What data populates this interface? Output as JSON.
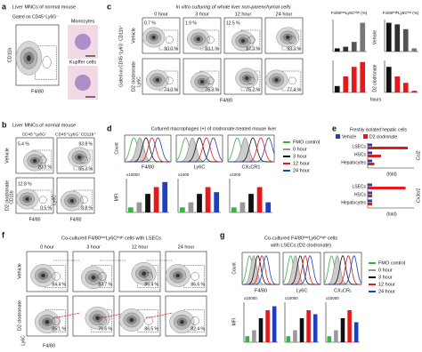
{
  "panel_a": {
    "label": "a",
    "title": "Liver MNCs of normal mouse",
    "gate": "Gated on CD45⁺Ly6G⁻",
    "images": [
      "Monocytes",
      "Kupffer cells"
    ],
    "y_axis": "CD11b",
    "x_axis": "F4/80"
  },
  "panel_c": {
    "label": "c",
    "title": "In vitro culturing of whole liver non-parenchymal cells",
    "times": [
      "0 hour",
      "3 hour",
      "12 hour",
      "24 hour"
    ],
    "rows": [
      "Vehicle",
      "D2 clodronate"
    ],
    "gate": "Gated on CD45⁺Ly6G⁻CD11b⁺",
    "y_axis": "Ly6C",
    "x_axis": "F4/80",
    "vehicle_upper": [
      "0.7 %",
      "1.9 %",
      "12.5 %"
    ],
    "vehicle_lower": [
      "90.0 %",
      "83.1 %",
      "87.3 %",
      "93.3 %"
    ],
    "d2_lower": [
      "74.0 %",
      "75.3 %",
      "76.2 %",
      "77.4 %"
    ],
    "bar_titles": [
      "F4/80ˡᵒʷLy6Cʰⁱᵍʰ (%)",
      "F4/80ʰⁱᵍʰLy6Cˡᵒʷ (%)"
    ],
    "bar_rows": [
      "Vehicle",
      "D2 clodronate"
    ],
    "bar_x_label": "hours"
  },
  "panel_b": {
    "label": "b",
    "title": "Liver MNCs of normal mouse",
    "headers": [
      "CD45⁺Ly6G⁻",
      "CD45⁺Ly6G⁻CD11b⁺"
    ],
    "rows": [
      "Vehicle",
      "D2 clodronate"
    ],
    "percents": [
      "5.4 %",
      "20.3 %",
      "93.8 %",
      "65.3 %",
      "12.8 %",
      "0.5 %",
      "8.8 %"
    ],
    "axes": [
      "CD11b",
      "F4/80",
      "Ly6C",
      "F4/80"
    ]
  },
  "panel_d": {
    "label": "d",
    "title": "Cultured macrophages (+) of clodronate-treated mouse liver",
    "legend": [
      "FMO control",
      "0 hour",
      "3 hour",
      "12 hour",
      "24 hour"
    ],
    "y_axis": "Count",
    "markers": [
      "F4/80",
      "Ly6C",
      "CX₃CR1"
    ],
    "bar_y_axis": "MFI",
    "multipliers": [
      "x10000",
      "x1000",
      "x1000"
    ]
  },
  "panel_e": {
    "label": "e",
    "title": "Freshly isolated hepatic cells",
    "legend": [
      "Vehicle",
      "D2 clodronate"
    ],
    "cells_1": [
      "LSECs",
      "HSCs",
      "Hepatocytes"
    ],
    "cells_2": [
      "LSECs",
      "HSCs",
      "Hepatocytes"
    ],
    "genes": [
      "Ccl2",
      "Cx3cl1"
    ],
    "units": [
      "(fold)",
      "(fold)"
    ]
  },
  "panel_f": {
    "label": "f",
    "title": "Co-cultured F4/80ˡᵒʷLy6Cʰⁱᵍʰ cells with LSECs",
    "times": [
      "0 hour",
      "3 hour",
      "12 hour",
      "24 hour"
    ],
    "rows": [
      "Vehicle",
      "D2 clodronate"
    ],
    "vehicle": [
      "84.4 %",
      "83.7 %",
      "85.4 %",
      "86.6 %"
    ],
    "d2": [
      "85.1 %",
      "76.6 %",
      "86.5 %",
      "82.4 %"
    ],
    "y_axis": "Ly6C",
    "x_axis": "F4/80"
  },
  "panel_g": {
    "label": "g",
    "title": [
      "Co-cultured F4/80ˡᵒʷLy6Cʰⁱᵍʰ cells",
      "with LSECs (D2 clodronate)"
    ],
    "legend": [
      "FMO control",
      "0 hour",
      "3 hour",
      "12 hour",
      "24 hour"
    ],
    "y_axis": "Count",
    "markers": [
      "F4/80",
      "Ly6C",
      "CX₃CR₁"
    ],
    "bar_y_axis": "MFI",
    "multipliers": [
      "x10000",
      "x10000",
      "x10000"
    ]
  }
}
